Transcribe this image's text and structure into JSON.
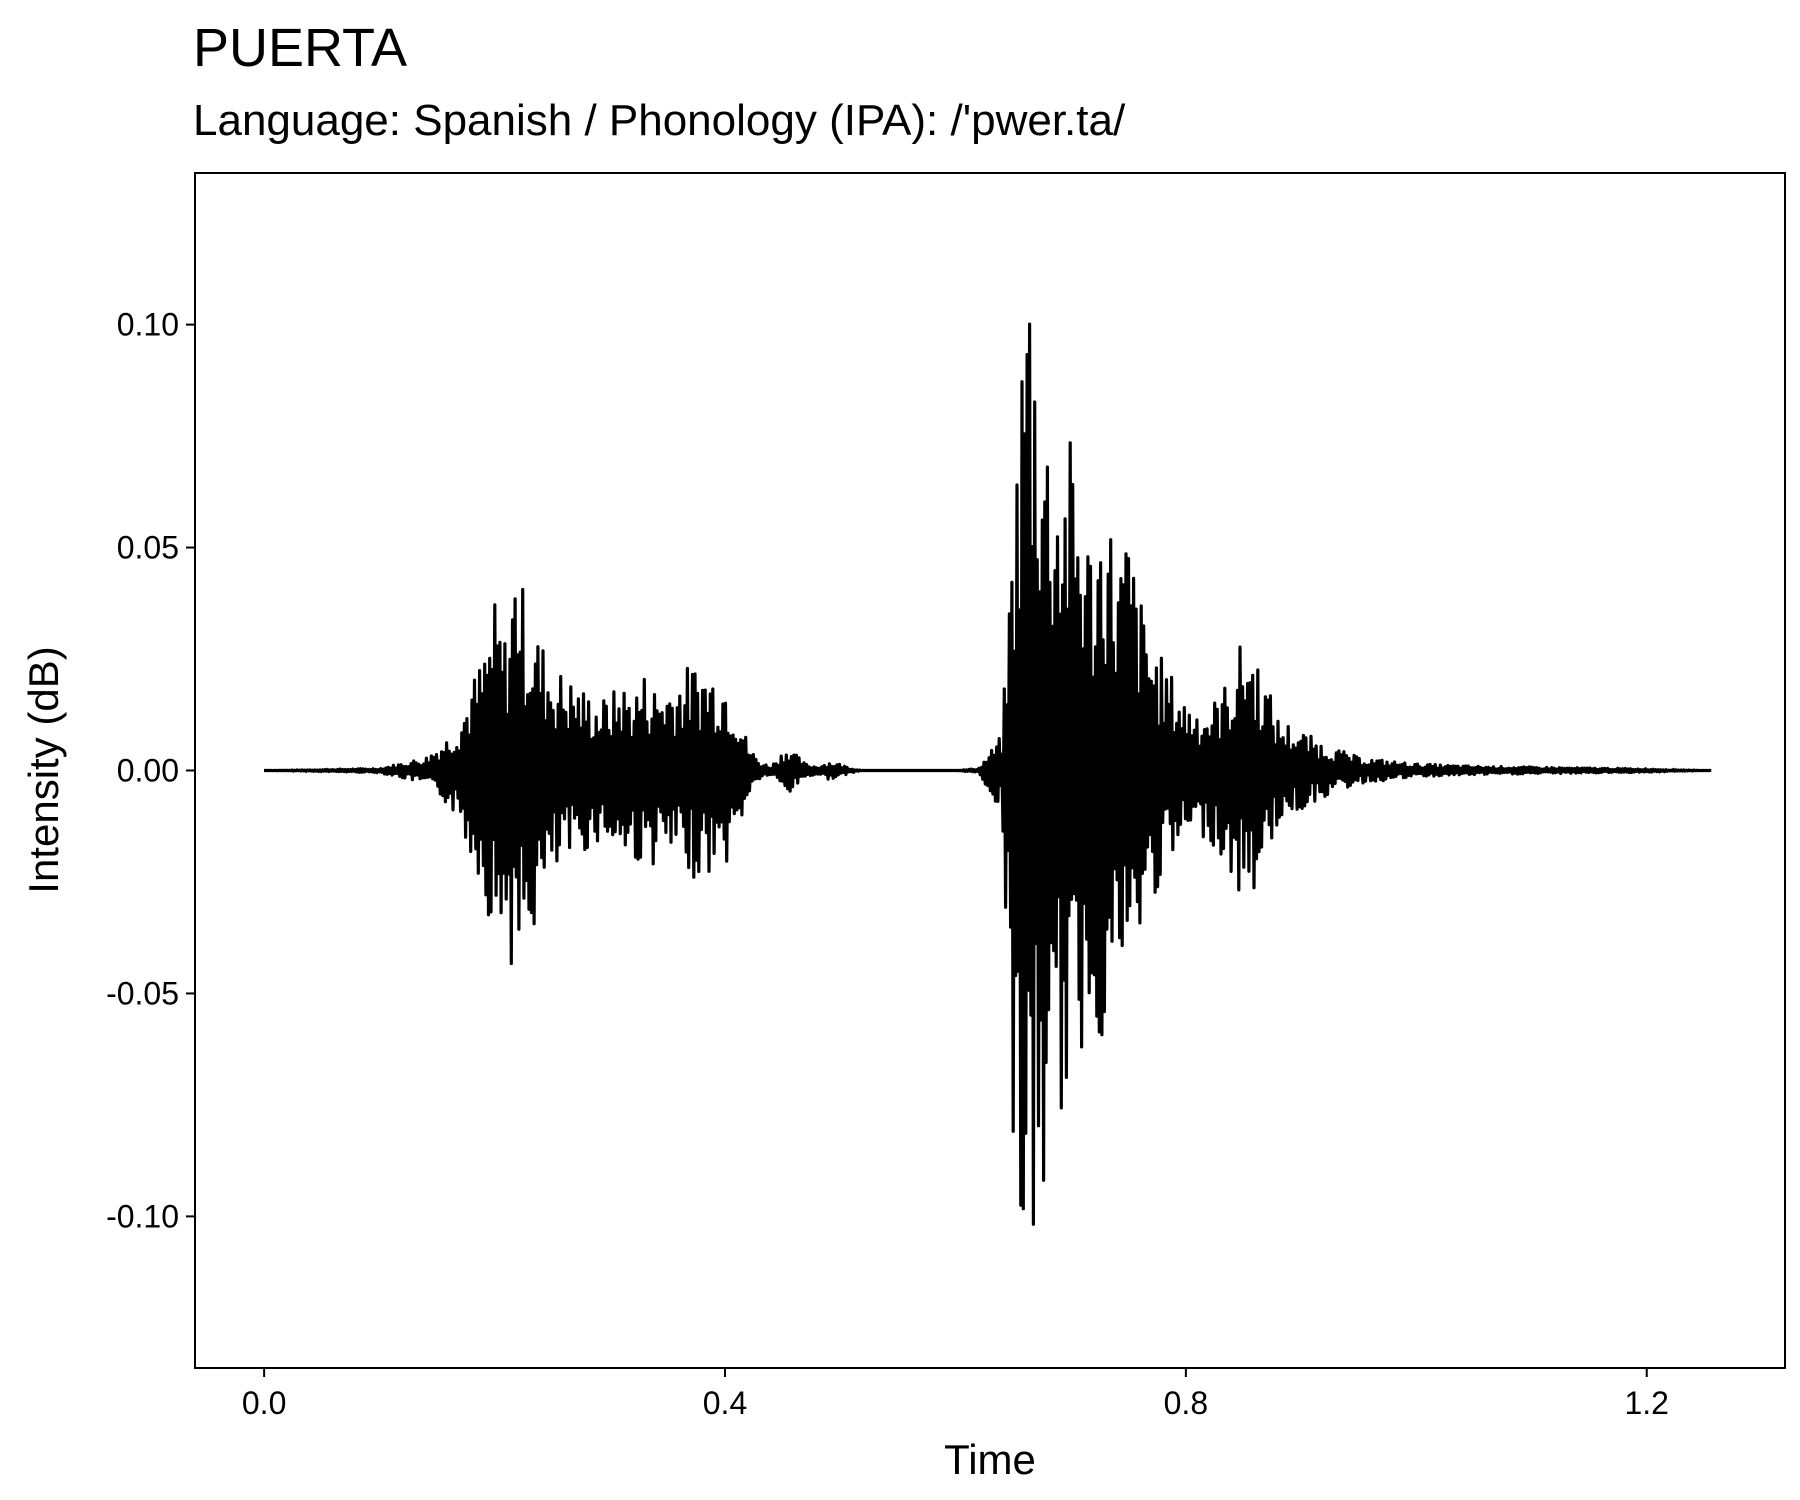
{
  "chart_data": {
    "type": "line",
    "title": "PUERTA",
    "subtitle": "Language: Spanish / Phonology (IPA): /'pwer.ta/",
    "xlabel": "Time",
    "ylabel": "Intensity (dB)",
    "xlim": [
      -0.06,
      1.32
    ],
    "ylim": [
      -0.134,
      0.134
    ],
    "x_ticks": [
      0.0,
      0.4,
      0.8,
      1.2
    ],
    "x_tick_labels": [
      "0.0",
      "0.4",
      "0.8",
      "1.2"
    ],
    "y_ticks": [
      -0.1,
      -0.05,
      0.0,
      0.05,
      0.1
    ],
    "y_tick_labels": [
      "-0.10",
      "-0.05",
      "0.00",
      "0.05",
      "0.10"
    ],
    "grid": false,
    "series": [
      {
        "color": "#000000",
        "envelope": {
          "x": [
            0.0,
            0.1,
            0.14,
            0.16,
            0.17,
            0.18,
            0.19,
            0.2,
            0.21,
            0.22,
            0.225,
            0.23,
            0.24,
            0.25,
            0.26,
            0.27,
            0.28,
            0.29,
            0.3,
            0.31,
            0.32,
            0.33,
            0.34,
            0.35,
            0.36,
            0.37,
            0.38,
            0.39,
            0.4,
            0.41,
            0.42,
            0.43,
            0.44,
            0.455,
            0.46,
            0.47,
            0.48,
            0.49,
            0.5,
            0.51,
            0.52,
            0.6,
            0.62,
            0.64,
            0.645,
            0.65,
            0.655,
            0.66,
            0.665,
            0.67,
            0.675,
            0.68,
            0.69,
            0.7,
            0.71,
            0.72,
            0.73,
            0.74,
            0.75,
            0.76,
            0.77,
            0.78,
            0.8,
            0.82,
            0.84,
            0.85,
            0.86,
            0.87,
            0.88,
            0.9,
            0.92,
            0.95,
            1.0,
            1.05,
            1.1,
            1.15,
            1.2,
            1.256
          ],
          "upper": [
            0.0,
            0.0005,
            0.003,
            0.008,
            0.012,
            0.02,
            0.026,
            0.038,
            0.03,
            0.054,
            0.04,
            0.035,
            0.03,
            0.024,
            0.022,
            0.02,
            0.018,
            0.016,
            0.017,
            0.02,
            0.018,
            0.022,
            0.019,
            0.02,
            0.022,
            0.024,
            0.024,
            0.023,
            0.022,
            0.016,
            0.006,
            0.002,
            0.001,
            0.006,
            0.004,
            0.0015,
            0.001,
            0.002,
            0.0015,
            0.0005,
            0.0,
            0.0,
            0.0005,
            0.008,
            0.03,
            0.06,
            0.08,
            0.115,
            0.122,
            0.1,
            0.09,
            0.08,
            0.07,
            0.075,
            0.06,
            0.05,
            0.065,
            0.048,
            0.055,
            0.04,
            0.03,
            0.025,
            0.016,
            0.014,
            0.022,
            0.031,
            0.027,
            0.02,
            0.012,
            0.009,
            0.006,
            0.003,
            0.0015,
            0.001,
            0.0008,
            0.0006,
            0.0004,
            0.0
          ],
          "lower": [
            0.0,
            -0.0005,
            -0.003,
            -0.008,
            -0.012,
            -0.02,
            -0.026,
            -0.04,
            -0.035,
            -0.054,
            -0.042,
            -0.04,
            -0.032,
            -0.026,
            -0.022,
            -0.02,
            -0.018,
            -0.016,
            -0.017,
            -0.02,
            -0.02,
            -0.022,
            -0.021,
            -0.02,
            -0.022,
            -0.024,
            -0.024,
            -0.023,
            -0.022,
            -0.016,
            -0.006,
            -0.002,
            -0.001,
            -0.006,
            -0.004,
            -0.0015,
            -0.001,
            -0.002,
            -0.0015,
            -0.0005,
            0.0,
            0.0,
            -0.0005,
            -0.01,
            -0.04,
            -0.085,
            -0.105,
            -0.115,
            -0.122,
            -0.11,
            -0.1,
            -0.094,
            -0.08,
            -0.072,
            -0.065,
            -0.055,
            -0.065,
            -0.045,
            -0.05,
            -0.04,
            -0.03,
            -0.025,
            -0.016,
            -0.015,
            -0.025,
            -0.031,
            -0.027,
            -0.02,
            -0.012,
            -0.009,
            -0.006,
            -0.003,
            -0.0015,
            -0.001,
            -0.0008,
            -0.0006,
            -0.0004,
            0.0
          ]
        }
      }
    ]
  }
}
